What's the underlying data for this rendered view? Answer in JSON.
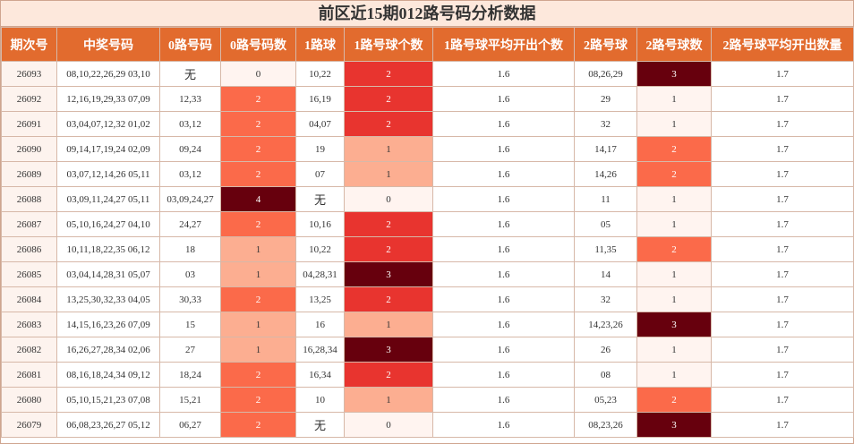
{
  "title": "前区近15期012路号码分析数据",
  "columns": [
    "期次号",
    "中奖号码",
    "0路号码",
    "0路号码数",
    "1路球",
    "1路号球个数",
    "1路号球平均开出个数",
    "2路号球",
    "2路号球数",
    "2路号球平均开出数量"
  ],
  "rows": [
    {
      "issue": "26093",
      "numbers": "08,10,22,26,29 03,10",
      "r0": "无",
      "r0n": "0",
      "r1": "10,22",
      "r1n": "2",
      "r1avg": "1.6",
      "r2": "08,26,29",
      "r2n": "3",
      "r2avg": "1.7"
    },
    {
      "issue": "26092",
      "numbers": "12,16,19,29,33 07,09",
      "r0": "12,33",
      "r0n": "2",
      "r1": "16,19",
      "r1n": "2",
      "r1avg": "1.6",
      "r2": "29",
      "r2n": "1",
      "r2avg": "1.7"
    },
    {
      "issue": "26091",
      "numbers": "03,04,07,12,32 01,02",
      "r0": "03,12",
      "r0n": "2",
      "r1": "04,07",
      "r1n": "2",
      "r1avg": "1.6",
      "r2": "32",
      "r2n": "1",
      "r2avg": "1.7"
    },
    {
      "issue": "26090",
      "numbers": "09,14,17,19,24 02,09",
      "r0": "09,24",
      "r0n": "2",
      "r1": "19",
      "r1n": "1",
      "r1avg": "1.6",
      "r2": "14,17",
      "r2n": "2",
      "r2avg": "1.7"
    },
    {
      "issue": "26089",
      "numbers": "03,07,12,14,26 05,11",
      "r0": "03,12",
      "r0n": "2",
      "r1": "07",
      "r1n": "1",
      "r1avg": "1.6",
      "r2": "14,26",
      "r2n": "2",
      "r2avg": "1.7"
    },
    {
      "issue": "26088",
      "numbers": "03,09,11,24,27 05,11",
      "r0": "03,09,24,27",
      "r0n": "4",
      "r1": "无",
      "r1n": "0",
      "r1avg": "1.6",
      "r2": "11",
      "r2n": "1",
      "r2avg": "1.7"
    },
    {
      "issue": "26087",
      "numbers": "05,10,16,24,27 04,10",
      "r0": "24,27",
      "r0n": "2",
      "r1": "10,16",
      "r1n": "2",
      "r1avg": "1.6",
      "r2": "05",
      "r2n": "1",
      "r2avg": "1.7"
    },
    {
      "issue": "26086",
      "numbers": "10,11,18,22,35 06,12",
      "r0": "18",
      "r0n": "1",
      "r1": "10,22",
      "r1n": "2",
      "r1avg": "1.6",
      "r2": "11,35",
      "r2n": "2",
      "r2avg": "1.7"
    },
    {
      "issue": "26085",
      "numbers": "03,04,14,28,31 05,07",
      "r0": "03",
      "r0n": "1",
      "r1": "04,28,31",
      "r1n": "3",
      "r1avg": "1.6",
      "r2": "14",
      "r2n": "1",
      "r2avg": "1.7"
    },
    {
      "issue": "26084",
      "numbers": "13,25,30,32,33 04,05",
      "r0": "30,33",
      "r0n": "2",
      "r1": "13,25",
      "r1n": "2",
      "r1avg": "1.6",
      "r2": "32",
      "r2n": "1",
      "r2avg": "1.7"
    },
    {
      "issue": "26083",
      "numbers": "14,15,16,23,26 07,09",
      "r0": "15",
      "r0n": "1",
      "r1": "16",
      "r1n": "1",
      "r1avg": "1.6",
      "r2": "14,23,26",
      "r2n": "3",
      "r2avg": "1.7"
    },
    {
      "issue": "26082",
      "numbers": "16,26,27,28,34 02,06",
      "r0": "27",
      "r0n": "1",
      "r1": "16,28,34",
      "r1n": "3",
      "r1avg": "1.6",
      "r2": "26",
      "r2n": "1",
      "r2avg": "1.7"
    },
    {
      "issue": "26081",
      "numbers": "08,16,18,24,34 09,12",
      "r0": "18,24",
      "r0n": "2",
      "r1": "16,34",
      "r1n": "2",
      "r1avg": "1.6",
      "r2": "08",
      "r2n": "1",
      "r2avg": "1.7"
    },
    {
      "issue": "26080",
      "numbers": "05,10,15,21,23 07,08",
      "r0": "15,21",
      "r0n": "2",
      "r1": "10",
      "r1n": "1",
      "r1avg": "1.6",
      "r2": "05,23",
      "r2n": "2",
      "r2avg": "1.7"
    },
    {
      "issue": "26079",
      "numbers": "06,08,23,26,27 05,12",
      "r0": "06,27",
      "r0n": "2",
      "r1": "无",
      "r1n": "0",
      "r1avg": "1.6",
      "r2": "08,23,26",
      "r2n": "3",
      "r2avg": "1.7"
    }
  ]
}
